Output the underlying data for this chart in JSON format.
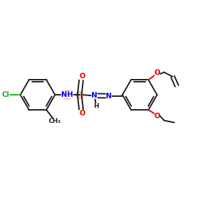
{
  "background": "#ffffff",
  "bond_color": "#1a1a1a",
  "bond_width": 1.4,
  "heteroatom_color_N": "#0000ee",
  "heteroatom_color_O": "#dd0000",
  "heteroatom_color_Cl": "#22aa22",
  "highlight_color": "#ff9999",
  "highlight_alpha": 0.55,
  "figsize": [
    3.0,
    3.0
  ],
  "dpi": 100,
  "xlim": [
    0,
    10
  ],
  "ylim": [
    0,
    10
  ]
}
